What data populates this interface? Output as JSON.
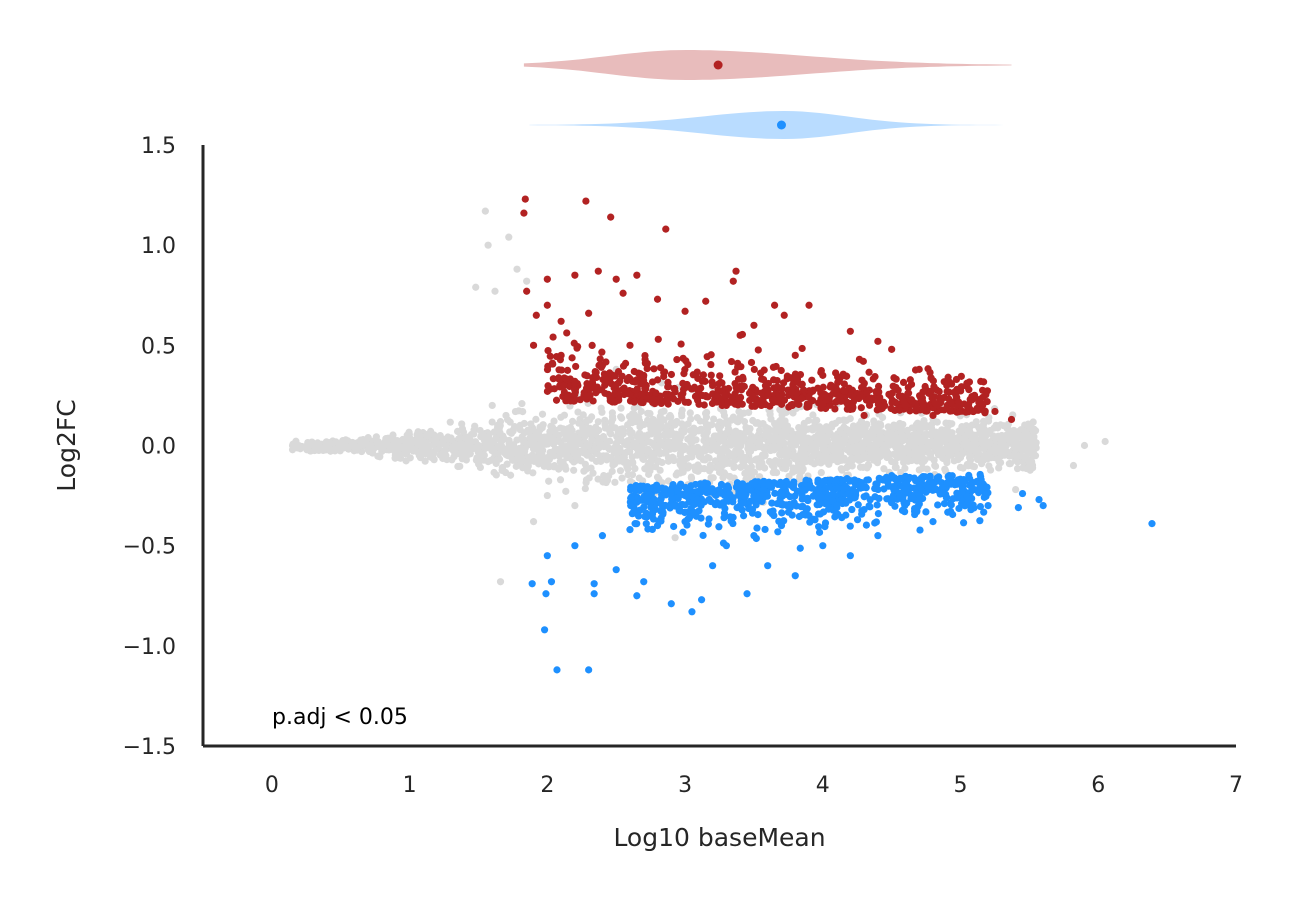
{
  "chart_data": {
    "type": "scatter",
    "title": "",
    "xlabel": "Log10 baseMean",
    "ylabel": "Log2FC",
    "xlim": [
      -0.5,
      7
    ],
    "ylim": [
      -1.5,
      1.5
    ],
    "xticks": [
      0,
      1,
      2,
      3,
      4,
      5,
      6,
      7
    ],
    "yticks": [
      -1.5,
      -1.0,
      -0.5,
      0.0,
      0.5,
      1.0,
      1.5
    ],
    "yticks_labels": [
      "−1.5",
      "−1.0",
      "−0.5",
      "0.0",
      "0.5",
      "1.0",
      "1.5"
    ],
    "grid": false,
    "annotation": "p.adj < 0.05",
    "colors": {
      "up": "#b22222",
      "down": "#1e90ff",
      "ns": "#d9d9d9",
      "up_violin": "#e8bcbc",
      "down_violin": "#b9dcff"
    },
    "series": [
      {
        "role": "ns",
        "points": [
          [
            0.15,
            0.0
          ],
          [
            0.3,
            0.01
          ],
          [
            0.5,
            -0.01
          ],
          [
            0.8,
            0.0
          ],
          [
            1.1,
            0.02
          ],
          [
            1.55,
            1.17
          ],
          [
            1.57,
            1.0
          ],
          [
            1.72,
            1.04
          ],
          [
            1.48,
            0.79
          ],
          [
            1.62,
            0.77
          ],
          [
            1.78,
            0.88
          ],
          [
            1.85,
            0.82
          ],
          [
            1.66,
            -0.68
          ],
          [
            1.9,
            -0.38
          ],
          [
            2.0,
            -0.25
          ],
          [
            2.2,
            -0.3
          ],
          [
            1.6,
            0.2
          ],
          [
            1.7,
            0.15
          ],
          [
            6.05,
            0.02
          ],
          [
            5.82,
            -0.1
          ],
          [
            5.5,
            0.03
          ],
          [
            5.9,
            0.0
          ],
          [
            5.3,
            0.05
          ],
          [
            5.0,
            -0.06
          ],
          [
            5.4,
            -0.22
          ],
          [
            2.3,
            0.3
          ],
          [
            2.5,
            0.38
          ],
          [
            3.0,
            0.1
          ],
          [
            4.0,
            0.08
          ],
          [
            4.5,
            -0.08
          ]
        ]
      },
      {
        "role": "up",
        "points": [
          [
            1.84,
            1.23
          ],
          [
            1.83,
            1.16
          ],
          [
            2.28,
            1.22
          ],
          [
            2.46,
            1.14
          ],
          [
            2.86,
            1.08
          ],
          [
            2.37,
            0.87
          ],
          [
            3.37,
            0.87
          ],
          [
            3.35,
            0.82
          ],
          [
            3.72,
            0.65
          ],
          [
            2.0,
            0.83
          ],
          [
            2.2,
            0.85
          ],
          [
            2.5,
            0.83
          ],
          [
            2.65,
            0.85
          ],
          [
            2.55,
            0.76
          ],
          [
            1.85,
            0.77
          ],
          [
            1.92,
            0.65
          ],
          [
            2.0,
            0.7
          ],
          [
            2.1,
            0.62
          ],
          [
            2.3,
            0.66
          ],
          [
            2.8,
            0.73
          ],
          [
            3.0,
            0.67
          ],
          [
            3.15,
            0.72
          ],
          [
            3.5,
            0.6
          ],
          [
            3.65,
            0.7
          ],
          [
            3.9,
            0.7
          ],
          [
            4.2,
            0.57
          ],
          [
            4.4,
            0.52
          ],
          [
            4.5,
            0.48
          ],
          [
            4.7,
            0.38
          ],
          [
            4.9,
            0.3
          ],
          [
            5.07,
            0.23
          ],
          [
            5.25,
            0.17
          ],
          [
            5.37,
            0.13
          ],
          [
            4.0,
            0.35
          ],
          [
            3.8,
            0.45
          ],
          [
            3.4,
            0.55
          ],
          [
            2.6,
            0.5
          ],
          [
            1.9,
            0.5
          ],
          [
            2.1,
            0.45
          ],
          [
            2.4,
            0.4
          ],
          [
            2.7,
            0.35
          ],
          [
            3.2,
            0.3
          ],
          [
            3.6,
            0.25
          ],
          [
            4.1,
            0.22
          ],
          [
            4.6,
            0.2
          ],
          [
            2.2,
            0.32
          ],
          [
            2.9,
            0.25
          ],
          [
            3.3,
            0.2
          ],
          [
            4.3,
            0.15
          ],
          [
            4.8,
            0.15
          ]
        ]
      },
      {
        "role": "down",
        "points": [
          [
            2.07,
            -1.12
          ],
          [
            2.3,
            -1.12
          ],
          [
            1.98,
            -0.92
          ],
          [
            1.99,
            -0.74
          ],
          [
            1.89,
            -0.69
          ],
          [
            2.03,
            -0.68
          ],
          [
            2.34,
            -0.74
          ],
          [
            2.34,
            -0.69
          ],
          [
            2.65,
            -0.75
          ],
          [
            2.9,
            -0.79
          ],
          [
            3.05,
            -0.83
          ],
          [
            3.12,
            -0.77
          ],
          [
            3.45,
            -0.74
          ],
          [
            6.39,
            -0.39
          ],
          [
            5.57,
            -0.27
          ],
          [
            5.6,
            -0.3
          ],
          [
            5.42,
            -0.31
          ],
          [
            5.45,
            -0.24
          ],
          [
            2.0,
            -0.55
          ],
          [
            2.2,
            -0.5
          ],
          [
            2.4,
            -0.45
          ],
          [
            2.6,
            -0.42
          ],
          [
            2.8,
            -0.4
          ],
          [
            3.0,
            -0.38
          ],
          [
            3.3,
            -0.5
          ],
          [
            3.5,
            -0.45
          ],
          [
            3.7,
            -0.4
          ],
          [
            3.9,
            -0.35
          ],
          [
            4.1,
            -0.3
          ],
          [
            4.3,
            -0.32
          ],
          [
            4.5,
            -0.28
          ],
          [
            4.7,
            -0.25
          ],
          [
            4.9,
            -0.26
          ],
          [
            5.1,
            -0.22
          ],
          [
            5.2,
            -0.3
          ],
          [
            3.2,
            -0.6
          ],
          [
            3.6,
            -0.6
          ],
          [
            4.0,
            -0.5
          ],
          [
            4.4,
            -0.45
          ],
          [
            4.8,
            -0.38
          ],
          [
            2.5,
            -0.62
          ],
          [
            2.7,
            -0.68
          ],
          [
            3.8,
            -0.65
          ],
          [
            4.2,
            -0.55
          ],
          [
            3.4,
            -0.3
          ],
          [
            3.9,
            -0.2
          ],
          [
            4.5,
            -0.15
          ],
          [
            3.0,
            -0.25
          ],
          [
            4.0,
            -0.18
          ],
          [
            2.9,
            -0.3
          ]
        ]
      }
    ],
    "violins": [
      {
        "role": "up",
        "median": 3.24
      },
      {
        "role": "down",
        "median": 3.7
      }
    ]
  }
}
